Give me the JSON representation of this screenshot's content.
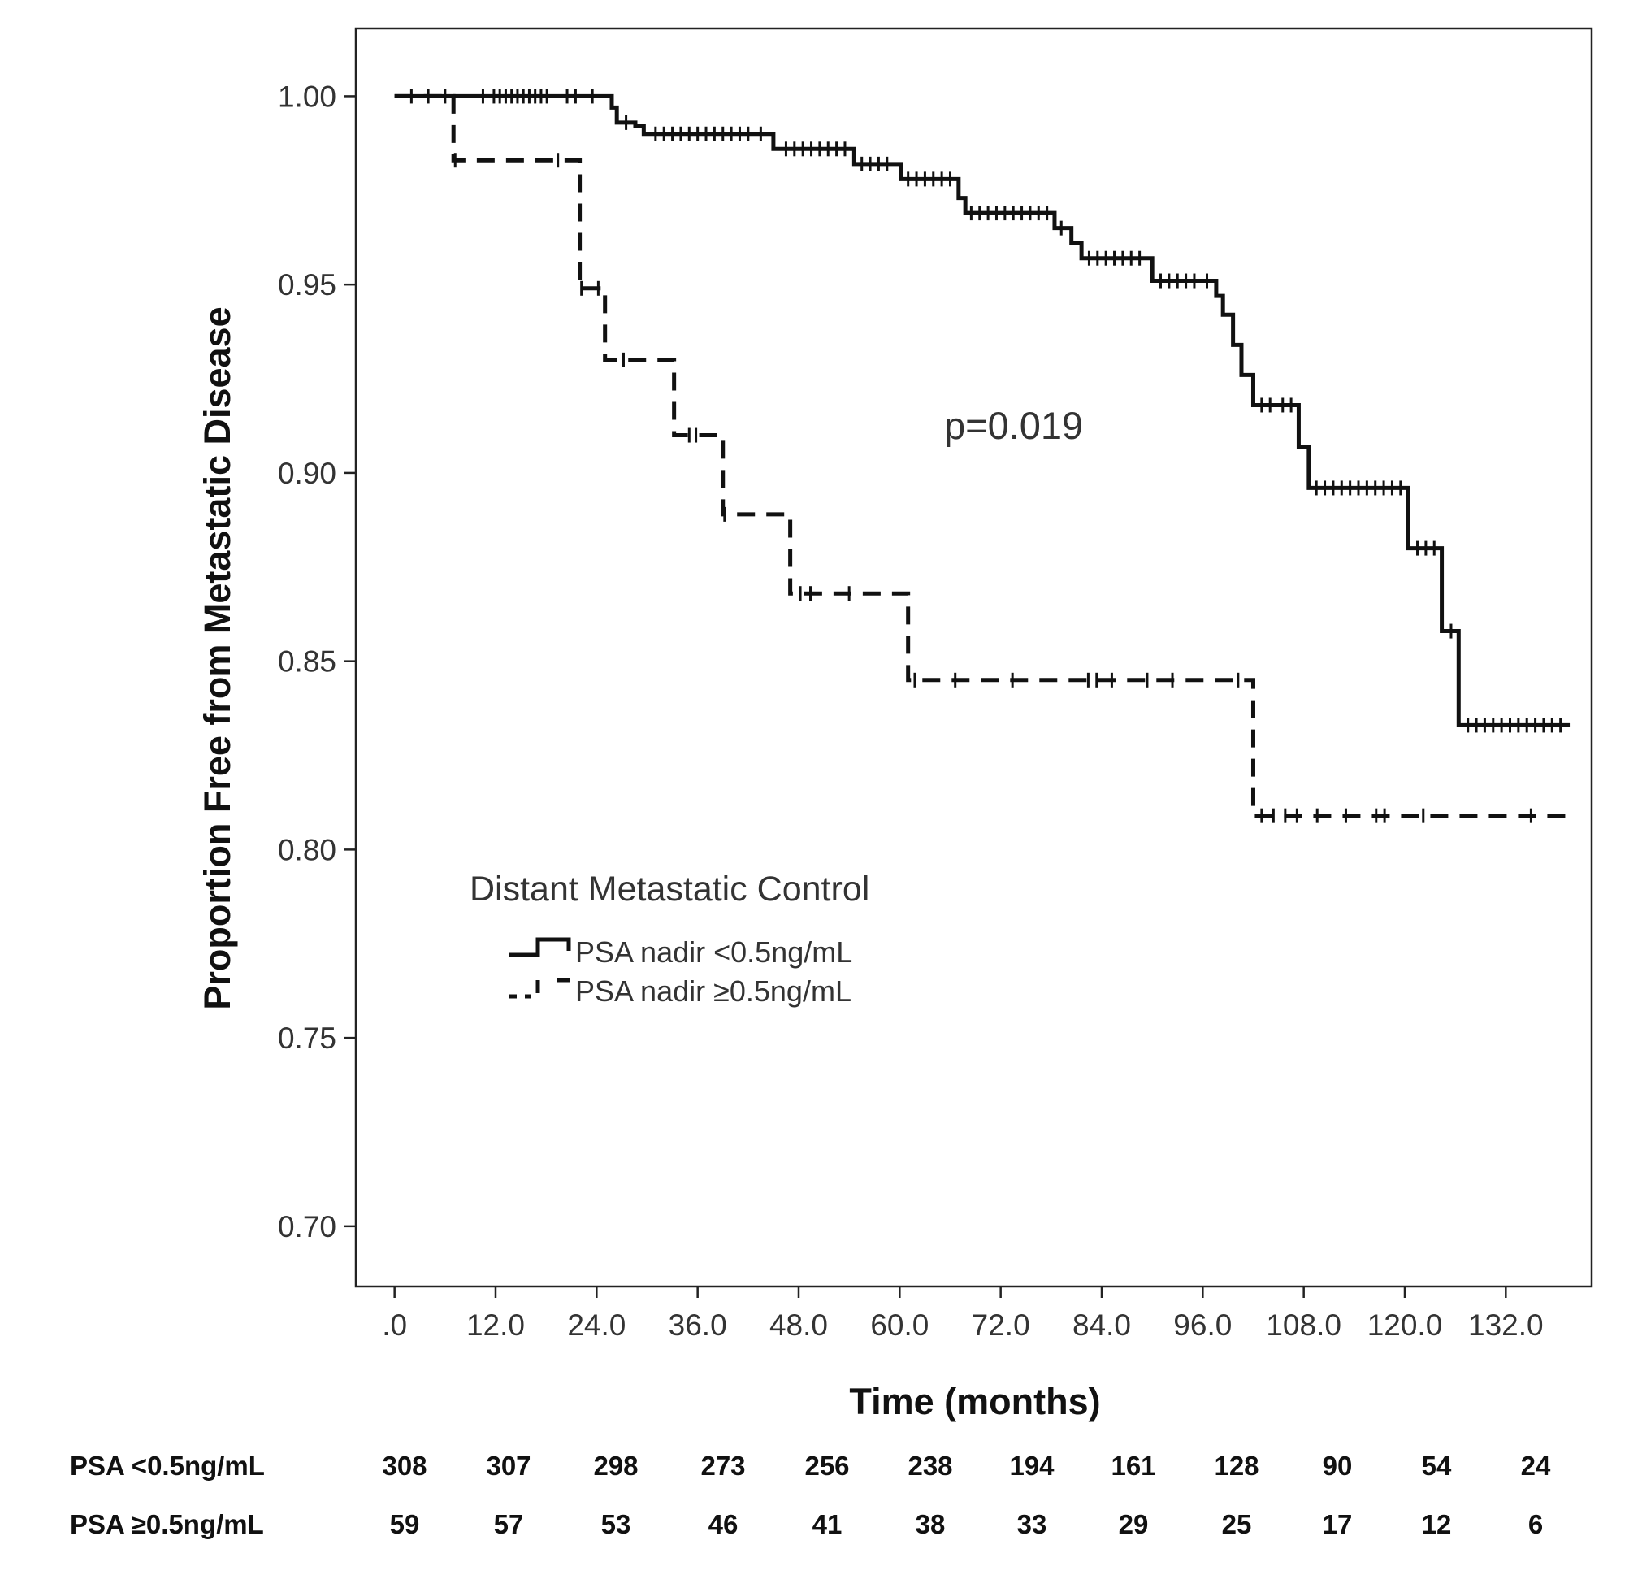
{
  "chart_data": {
    "type": "line",
    "subtype": "kaplan-meier",
    "title": "",
    "xlabel": "Time (months)",
    "ylabel": "Proportion Free from Metastatic Disease",
    "xlim": [
      -4.6,
      142.2
    ],
    "ylim": [
      0.684,
      1.018
    ],
    "x_ticks": [
      0,
      12,
      24,
      36,
      48,
      60,
      72,
      84,
      96,
      108,
      120,
      132
    ],
    "x_tick_labels": [
      ".0",
      "12.0",
      "24.0",
      "36.0",
      "48.0",
      "60.0",
      "72.0",
      "84.0",
      "96.0",
      "108.0",
      "120.0",
      "132.0"
    ],
    "y_ticks": [
      0.7,
      0.75,
      0.8,
      0.85,
      0.9,
      0.95,
      1.0
    ],
    "y_tick_labels": [
      "0.70",
      "0.75",
      "0.80",
      "0.85",
      "0.90",
      "0.95",
      "1.00"
    ],
    "grid": false,
    "annotation": "p=0.019",
    "legend": {
      "title": "Distant Metastatic Control",
      "position": "center-left",
      "entries": [
        "PSA nadir <0.5ng/mL",
        "PSA nadir ≥0.5ng/mL"
      ]
    },
    "series": [
      {
        "name": "PSA nadir <0.5ng/mL",
        "style": "solid",
        "color": "#111111",
        "steps": [
          [
            0,
            1.0
          ],
          [
            25.8,
            0.997
          ],
          [
            26.4,
            0.993
          ],
          [
            28.6,
            0.992
          ],
          [
            29.6,
            0.99
          ],
          [
            45.0,
            0.986
          ],
          [
            54.6,
            0.982
          ],
          [
            60.2,
            0.978
          ],
          [
            67.0,
            0.973
          ],
          [
            67.8,
            0.969
          ],
          [
            78.4,
            0.965
          ],
          [
            80.4,
            0.961
          ],
          [
            81.6,
            0.957
          ],
          [
            90.0,
            0.951
          ],
          [
            97.6,
            0.947
          ],
          [
            98.4,
            0.942
          ],
          [
            99.6,
            0.934
          ],
          [
            100.6,
            0.926
          ],
          [
            102.0,
            0.918
          ],
          [
            107.4,
            0.907
          ],
          [
            108.6,
            0.896
          ],
          [
            120.4,
            0.88
          ],
          [
            124.4,
            0.858
          ],
          [
            126.4,
            0.833
          ]
        ],
        "x_end": 139.6,
        "censored": [
          2,
          4,
          6,
          10.5,
          11.8,
          12.5,
          13.2,
          13.9,
          14.6,
          15.3,
          16.0,
          16.7,
          17.4,
          18.1,
          20.5,
          21.5,
          23.5,
          27.5,
          31,
          32,
          33,
          34,
          35,
          36,
          37,
          38,
          39,
          40,
          41,
          42,
          43.5,
          46.5,
          47.5,
          48.5,
          49.5,
          50.5,
          51.5,
          52.5,
          53.5,
          55.5,
          56.5,
          57.5,
          58.5,
          61,
          62,
          63,
          64,
          65,
          66,
          68.5,
          69.5,
          70.5,
          71.5,
          72.5,
          73.5,
          74.5,
          75.5,
          76.5,
          77.5,
          79.2,
          82.5,
          83.5,
          84.5,
          85.5,
          86.5,
          87.5,
          88.5,
          91,
          92,
          93,
          94,
          95,
          96.5,
          103,
          104,
          105.5,
          106.5,
          109.5,
          110.5,
          111.5,
          112.5,
          113.5,
          114.5,
          115.5,
          116.5,
          117.5,
          118.5,
          119.5,
          121.5,
          122.5,
          123.5,
          125.5,
          127.5,
          128.5,
          129.5,
          130.5,
          131.5,
          132.5,
          133.5,
          134.5,
          135.5,
          136.5,
          137.5,
          138.5
        ]
      },
      {
        "name": "PSA nadir ≥0.5ng/mL",
        "style": "dashed",
        "color": "#111111",
        "steps": [
          [
            0,
            1.0
          ],
          [
            7.0,
            0.983
          ],
          [
            22.0,
            0.949
          ],
          [
            25.0,
            0.93
          ],
          [
            33.2,
            0.91
          ],
          [
            39.0,
            0.889
          ],
          [
            47.0,
            0.868
          ],
          [
            61.0,
            0.845
          ],
          [
            102.0,
            0.809
          ]
        ],
        "x_end": 139.6,
        "censored": [
          7.2,
          19.4,
          22.2,
          24.2,
          27.2,
          35.0,
          35.8,
          39.2,
          48.2,
          49.4,
          54.0,
          61.8,
          66.6,
          73.4,
          82.4,
          83.4,
          85.2,
          89.4,
          92.4,
          100.2,
          103.0,
          104.4,
          105.8,
          107.2,
          109.6,
          113.0,
          116.6,
          117.6,
          122.2,
          135.0
        ]
      }
    ],
    "risk_table": {
      "time_points": [
        0,
        12,
        24,
        36,
        48,
        60,
        72,
        84,
        96,
        108,
        120,
        132
      ],
      "rows": [
        {
          "label": "PSA <0.5ng/mL",
          "values": [
            "308",
            "307",
            "298",
            "273",
            "256",
            "238",
            "194",
            "161",
            "128",
            "90",
            "54",
            "24"
          ]
        },
        {
          "label": "PSA ≥0.5ng/mL",
          "values": [
            "59",
            "57",
            "53",
            "46",
            "41",
            "38",
            "33",
            "29",
            "25",
            "17",
            "12",
            "6"
          ]
        }
      ]
    }
  }
}
